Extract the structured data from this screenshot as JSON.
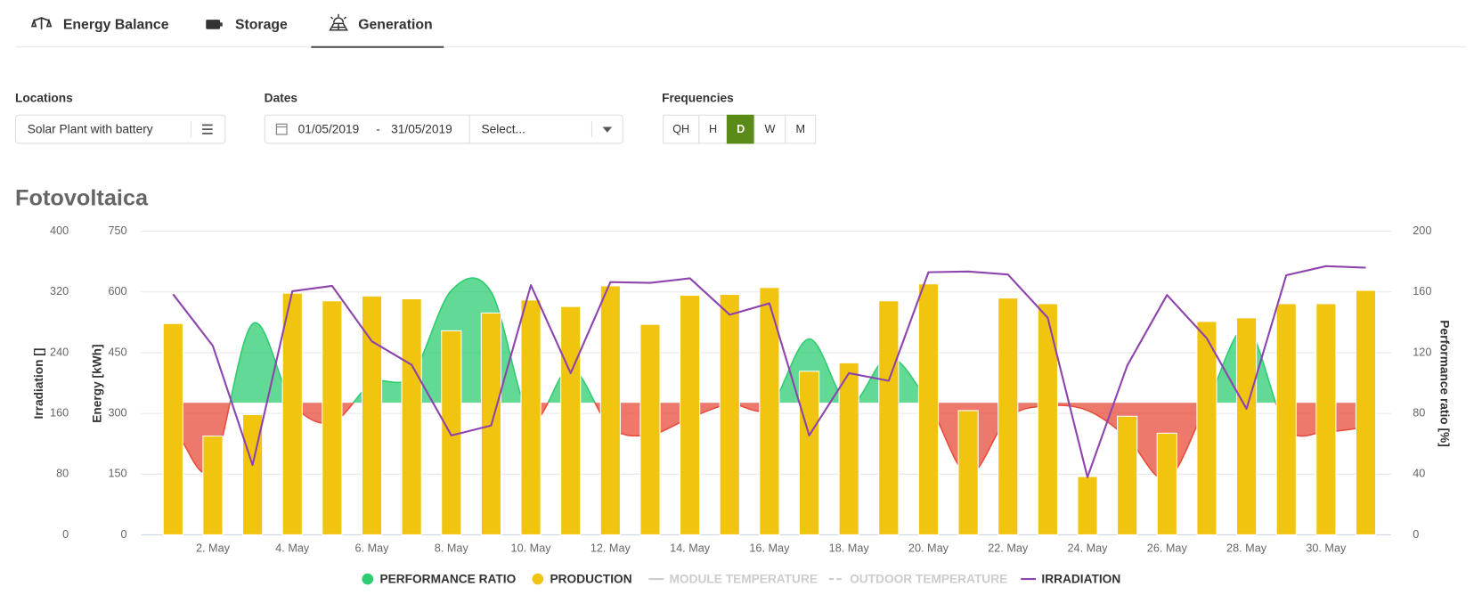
{
  "tabs": [
    "Energy Balance",
    "Storage",
    "Generation"
  ],
  "active_tab": 2,
  "filters": {
    "locations": {
      "label": "Locations",
      "value": "Solar Plant with battery"
    },
    "dates": {
      "label": "Dates",
      "start": "01/05/2019",
      "separator": "-",
      "end": "31/05/2019",
      "placeholder": "Select..."
    },
    "frequencies": {
      "label": "Frequencies",
      "options": [
        "QH",
        "H",
        "D",
        "W",
        "M"
      ],
      "active": 2,
      "active_color": "#5a8a17"
    }
  },
  "chart_data": {
    "type": "combo",
    "title": "Fotovoltaica",
    "categories": [
      null,
      "2. May",
      null,
      "4. May",
      null,
      "6. May",
      null,
      "8. May",
      null,
      "10. May",
      null,
      "12. May",
      null,
      "14. May",
      null,
      "16. May",
      null,
      "18. May",
      null,
      "20. May",
      null,
      "22. May",
      null,
      "24. May",
      null,
      "26. May",
      null,
      "28. May",
      null,
      "30. May",
      null
    ],
    "ylabel": "Energy [kWh]",
    "ylim": [
      0,
      750
    ],
    "yticks": [
      0,
      150,
      300,
      450,
      600,
      750
    ],
    "y2label": "Performance ratio [%]",
    "y2lim": [
      0,
      200
    ],
    "y2ticks": [
      0,
      40,
      80,
      120,
      160,
      200
    ],
    "y3label": "Irradiation []",
    "y3lim": [
      0,
      400
    ],
    "y3ticks": [
      0,
      80,
      160,
      240,
      320,
      400
    ],
    "grid": true,
    "series": [
      {
        "name": "PERFORMANCE RATIO",
        "type": "area",
        "axis": "y2",
        "color": "#2ecc71",
        "below_color": "#e74c3c",
        "baseline": 87,
        "values": [
          61,
          44,
          139,
          87,
          74,
          100,
          105,
          161,
          160,
          77,
          110,
          71,
          66,
          77,
          86,
          84,
          129,
          86,
          117,
          87,
          40,
          77,
          85,
          82,
          64,
          37,
          86,
          136,
          71,
          68,
          71
        ]
      },
      {
        "name": "PRODUCTION",
        "type": "bar",
        "axis": "y",
        "color": "#f1c40f",
        "values": [
          522,
          244,
          297,
          597,
          578,
          590,
          583,
          504,
          548,
          580,
          564,
          615,
          520,
          592,
          594,
          611,
          404,
          425,
          578,
          620,
          307,
          585,
          571,
          144,
          293,
          251,
          527,
          536,
          571,
          571,
          604
        ]
      },
      {
        "name": "MODULE TEMPERATURE",
        "type": "line",
        "hidden": true,
        "color": "#cccccc"
      },
      {
        "name": "OUTDOOR TEMPERATURE",
        "type": "line",
        "hidden": true,
        "dashed": true,
        "color": "#cccccc"
      },
      {
        "name": "IRRADIATION",
        "type": "line",
        "axis": "y3",
        "color": "#8e44ad",
        "values": [
          317,
          249,
          92,
          321,
          328,
          255,
          224,
          131,
          144,
          329,
          213,
          333,
          332,
          338,
          290,
          305,
          131,
          213,
          203,
          346,
          347,
          343,
          286,
          76,
          223,
          316,
          259,
          166,
          342,
          354,
          352
        ]
      }
    ]
  }
}
